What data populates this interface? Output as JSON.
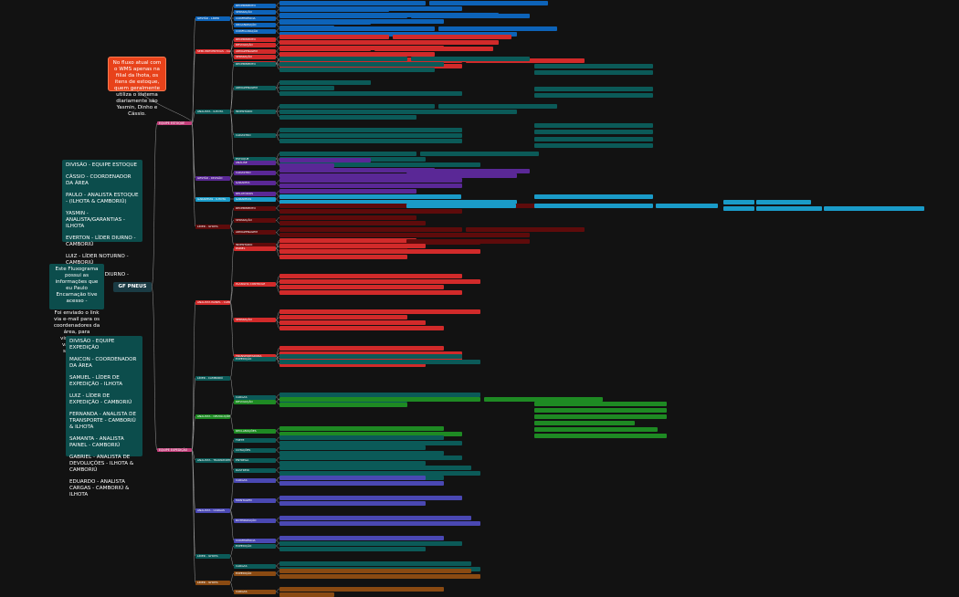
{
  "root": {
    "label": "GF PNEUS"
  },
  "teams": {
    "estoque_label": "EQUIPE ESTOQUE",
    "expedicao_label": "EQUIPE EXPEDIÇÃO"
  },
  "note": {
    "text": "No fluxo atual com o WMS apenas na filial da Ihota, os itens de estoque, quem geralmente utiliza o sistema diariamente são Yasmin, Dinho e Cássio."
  },
  "intro": {
    "lines": [
      "Este Fluxograma possui as informações que eu Paulo Encarnação tive acesso -",
      "Foi enviado o link via e-mail para os coordenadores da área, para visualização, validação e sugestões."
    ]
  },
  "estoque_card": {
    "lines": [
      "DIVISÃO - EQUIPE ESTOQUE",
      "CÁSSIO - COORDENADOR DA ÁREA",
      "PAULO - ANALISTA ESTOQUE - (ILHOTA & CAMBORIÚ)",
      "YASMIN - ANALISTA/GARANTIAS - ILHOTA",
      "EVERTON - LÍDER DIURNO - CAMBORIÚ",
      "LUIZ - LÍDER NOTURNO - CAMBORIÚ",
      "DINHO - LÍDER DIURNO - ILHOTA"
    ]
  },
  "expedicao_card": {
    "lines": [
      "DIVISÃO - EQUIPE EXPEDIÇÃO",
      "MAICON - COORDENADOR DA ÁREA",
      "SAMUEL - LÍDER DE EXPEDIÇÃO - ILHOTA",
      "LUIZ - LÍDER DE EXPEDIÇÃO - CAMBORIÚ",
      "FERNANDA - ANALISTA DE TRANSPORTE - CAMBORIÚ & ILHOTA",
      "SAMANTA - ANALISTA PAINEL - CAMBORIÚ",
      "GABRIEL - ANALISTA DE DEVOLUÇÕES - ILHOTA & CAMBORIÚ",
      "EDUARDO - ANALISTA CARGAS - CAMBORIÚ & ILHOTA"
    ]
  },
  "colors": {
    "blue": "#0d63b8",
    "red": "#d12a2a",
    "teal": "#0b5a58",
    "purple": "#5a2896",
    "cyan": "#1a9bc8",
    "darkred": "#5e0b0b",
    "green": "#1e8a23",
    "orange": "#f2a21b",
    "indigo": "#4a48b3",
    "pink": "#c23f7a",
    "brown": "#8a4a12"
  },
  "groups": [
    {
      "key": "blue",
      "label": "GESTÃO - LÍDER",
      "items": [
        "RECEBIMENTO",
        "SEPARAÇÃO",
        "CONFERÊNCIA",
        "ORGANIZAÇÃO",
        "CONFIGURAÇÃO"
      ]
    },
    {
      "key": "red",
      "label": "SEMI-PREVENTIVAS - CAM",
      "items": [
        "RECEBIMENTO",
        "DEVOLUÇÃO",
        "ARMAZENAGEM",
        "SEPARAÇÃO",
        "INVENTÁRIO"
      ]
    },
    {
      "key": "teal",
      "label": "ANALISTA - ILHOTA",
      "items": [
        "RECEBIMENTO",
        "ARMAZENAGEM",
        "INVENTÁRIO",
        "CADASTRO",
        "ESTOQUE"
      ]
    },
    {
      "key": "purple",
      "label": "GESTÃO - DIVISÃO",
      "items": [
        "ANÁLISE",
        "CADASTRO",
        "GARANTIA",
        "RELATÓRIOS"
      ]
    },
    {
      "key": "cyan",
      "label": "GARANTIAS - ILHOTA",
      "items": [
        "GARANTIAS"
      ]
    },
    {
      "key": "darkred",
      "label": "LÍDER - ILHOTA",
      "items": [
        "RECEBIMENTO",
        "SEPARAÇÃO",
        "ARMAZENAGEM",
        "INVENTÁRIO"
      ]
    },
    {
      "key": "red",
      "label": "ANALISTA PAINEL - CAMBORIÚ",
      "items": [
        "PAINEL",
        "PLANILHA CONTROLE",
        "SEPARAÇÃO",
        "TRANSPORTADORA"
      ]
    },
    {
      "key": "teal",
      "label": "LÍDER - CAMBORIÚ",
      "items": [
        "EXPEDIÇÃO",
        "CARGAS"
      ]
    },
    {
      "key": "green",
      "label": "ANALISTA - DEVOLUÇÕES",
      "items": [
        "DEVOLUÇÃO",
        "RECLAMAÇÕES"
      ]
    },
    {
      "key": "teal",
      "label": "ANALISTA - TRANSPORTE",
      "items": [
        "FRETE",
        "COTAÇÕES",
        "ENTREGA",
        "RASTREIO",
        "CTE"
      ]
    },
    {
      "key": "indigo",
      "label": "ANALISTA - CARGAS",
      "items": [
        "CARGAS",
        "MONTAGEM",
        "ROTEIRIZAÇÃO",
        "CONFERÊNCIA"
      ]
    },
    {
      "key": "teal",
      "label": "LÍDER - ILHOTA",
      "items": [
        "EXPEDIÇÃO",
        "CARGAS"
      ]
    },
    {
      "key": "brown",
      "label": "LÍDER - ILHOTA",
      "items": [
        "EXPEDIÇÃO",
        "CARGAS"
      ]
    }
  ]
}
